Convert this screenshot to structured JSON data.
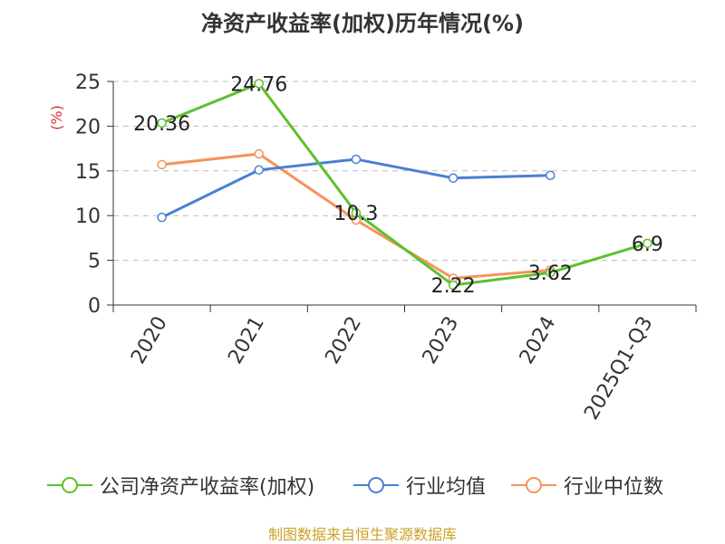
{
  "title": "净资产收益率(加权)历年情况(%)",
  "source": "制图数据来自恒生聚源数据库",
  "colors": {
    "roe": "#5cc12d",
    "industry_avg": "#4a7fd4",
    "industry_median": "#f5935a",
    "axis_label": "#d9302f",
    "grid": "#bbbbbb",
    "axis": "#333333",
    "source": "#c9a227"
  },
  "chart_data": {
    "type": "line",
    "title": "净资产收益率(加权)历年情况(%)",
    "ylabel": "(%)",
    "xlabel": "",
    "categories": [
      "2020",
      "2021",
      "2022",
      "2023",
      "2024",
      "2025Q1-Q3"
    ],
    "ylim": [
      0,
      25
    ],
    "yticks": [
      0,
      5,
      10,
      15,
      20,
      25
    ],
    "grid": true,
    "legend_position": "bottom",
    "series": [
      {
        "name": "公司净资产收益率(加权)",
        "color": "#5cc12d",
        "values": [
          20.36,
          24.76,
          10.3,
          2.22,
          3.62,
          6.9
        ],
        "labels": [
          "20.36",
          "24.76",
          "10.3",
          "2.22",
          "3.62",
          "6.9"
        ]
      },
      {
        "name": "行业均值",
        "color": "#4a7fd4",
        "values": [
          9.8,
          15.1,
          16.3,
          14.2,
          14.5,
          null
        ]
      },
      {
        "name": "行业中位数",
        "color": "#f5935a",
        "values": [
          15.7,
          16.9,
          9.5,
          3.0,
          3.9,
          null
        ]
      }
    ]
  }
}
